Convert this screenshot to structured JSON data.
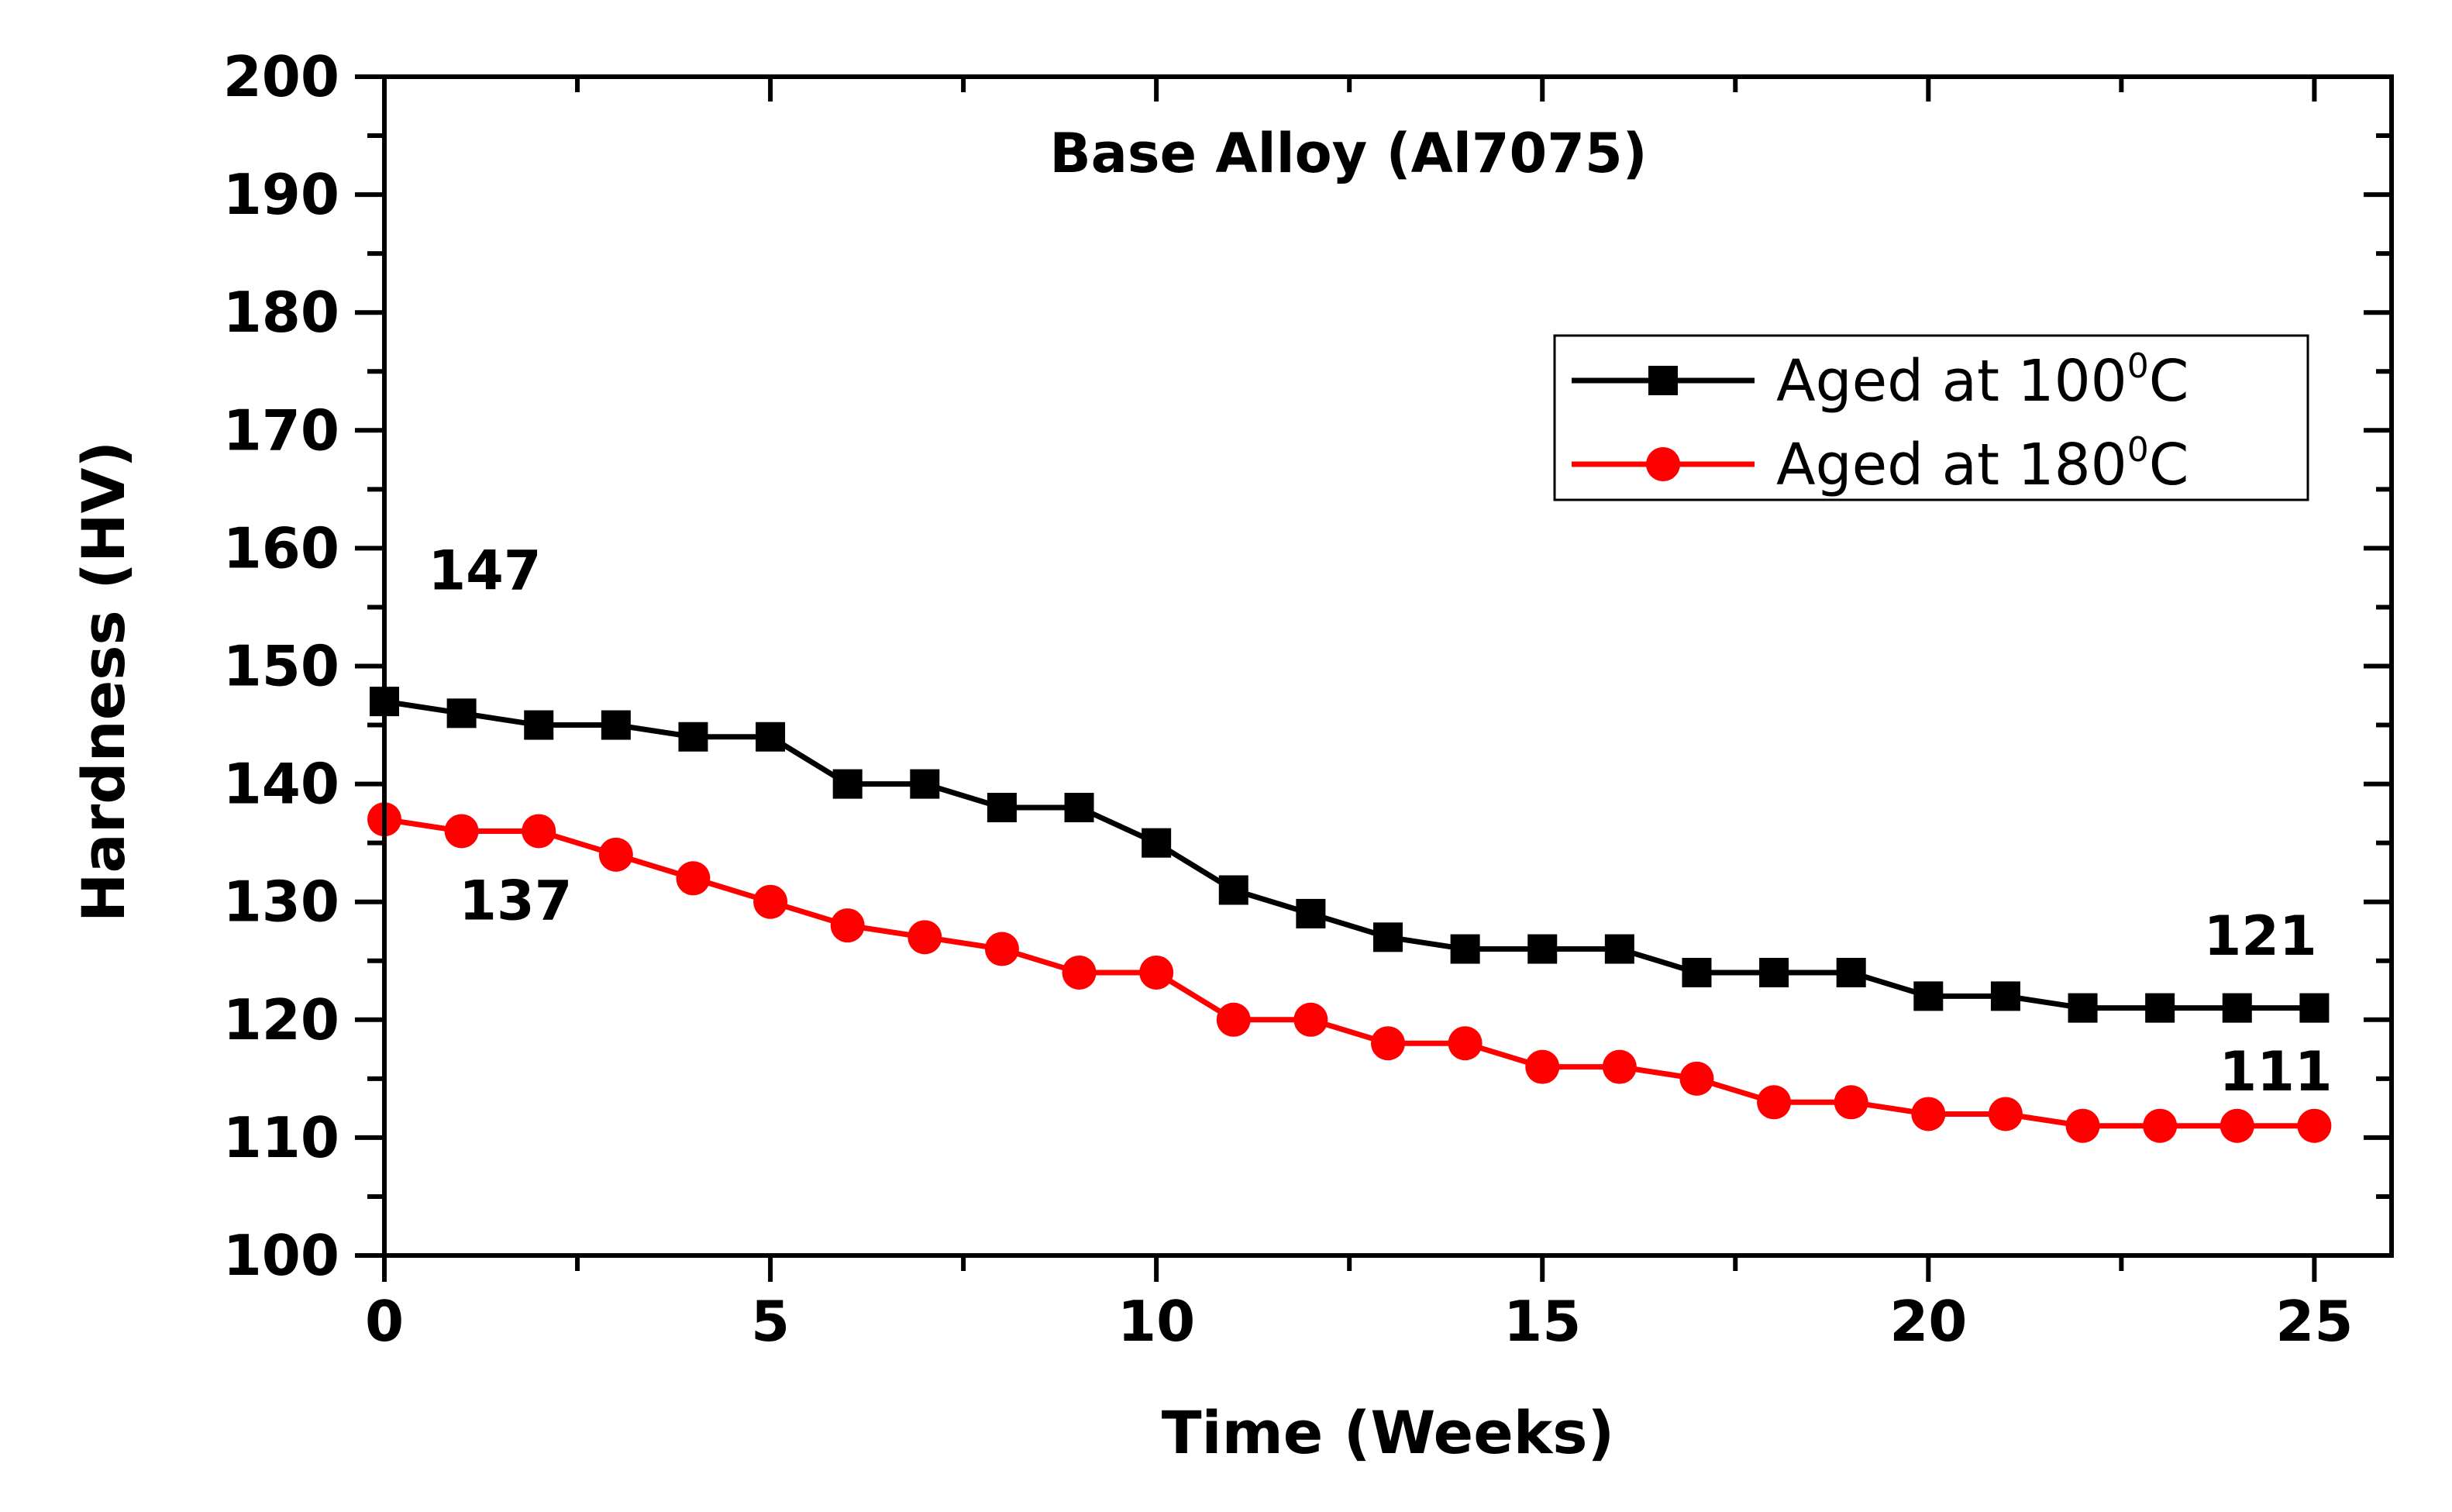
{
  "chart_data": {
    "type": "line",
    "title": "Base Alloy (Al7075)",
    "xlabel": "Time (Weeks)",
    "ylabel": "Hardness (HV)",
    "xlim": [
      0,
      26
    ],
    "ylim": [
      100,
      200
    ],
    "xticks": [
      0,
      5,
      10,
      15,
      20,
      25
    ],
    "yticks": [
      100,
      110,
      120,
      130,
      140,
      150,
      160,
      170,
      180,
      190,
      200
    ],
    "legend_position": "top-right",
    "x": [
      0,
      1,
      2,
      3,
      4,
      5,
      6,
      7,
      8,
      9,
      10,
      11,
      12,
      13,
      14,
      15,
      16,
      17,
      18,
      19,
      20,
      21,
      22,
      23,
      24,
      25
    ],
    "series": [
      {
        "name": "Aged at 100°C",
        "legend_prefix": "Aged at 100",
        "legend_sup": "0",
        "legend_suffix": "C",
        "color": "#000000",
        "marker": "square",
        "values": [
          147,
          146,
          145,
          145,
          144,
          144,
          140,
          140,
          138,
          138,
          135,
          131,
          129,
          127,
          126,
          126,
          126,
          124,
          124,
          124,
          122,
          122,
          121,
          121,
          121,
          121
        ]
      },
      {
        "name": "Aged at 180°C",
        "legend_prefix": "Aged at 180",
        "legend_sup": "0",
        "legend_suffix": "C",
        "color": "#ff0000",
        "marker": "circle",
        "values": [
          137,
          136,
          136,
          134,
          132,
          130,
          128,
          127,
          126,
          124,
          124,
          120,
          120,
          118,
          118,
          116,
          116,
          115,
          113,
          113,
          112,
          112,
          111,
          111,
          111,
          111
        ]
      }
    ],
    "annotations": [
      {
        "text": "147",
        "x": 1.3,
        "y": 156.5
      },
      {
        "text": "137",
        "x": 1.7,
        "y": 128.5
      },
      {
        "text": "121",
        "x": 24.3,
        "y": 125.5
      },
      {
        "text": "111",
        "x": 24.5,
        "y": 114
      }
    ]
  }
}
